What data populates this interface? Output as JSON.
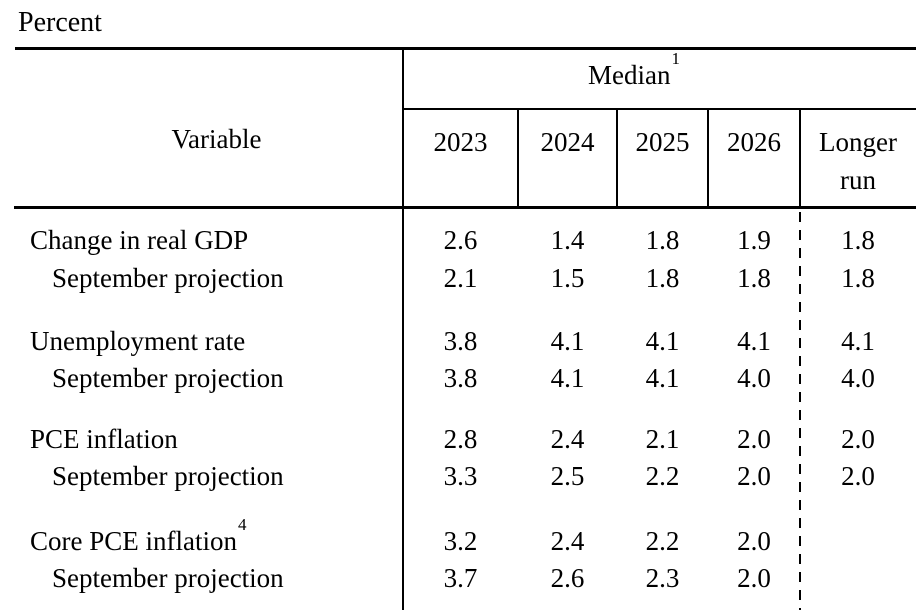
{
  "page": {
    "unit_label": "Percent",
    "text_color": "#000000",
    "background_color": "#ffffff"
  },
  "table": {
    "variable_header": "Variable",
    "median": {
      "label": "Median",
      "sup": "1"
    },
    "years": [
      "2023",
      "2024",
      "2025",
      "2026"
    ],
    "longer_run": {
      "line1": "Longer",
      "line2": "run"
    },
    "rows": [
      {
        "label": "Change in real GDP",
        "sup": "",
        "values": [
          "2.6",
          "1.4",
          "1.8",
          "1.9",
          "1.8"
        ]
      },
      {
        "label": "September projection",
        "sup": "",
        "values": [
          "2.1",
          "1.5",
          "1.8",
          "1.8",
          "1.8"
        ]
      },
      {
        "label": "Unemployment rate",
        "sup": "",
        "values": [
          "3.8",
          "4.1",
          "4.1",
          "4.1",
          "4.1"
        ]
      },
      {
        "label": "September projection",
        "sup": "",
        "values": [
          "3.8",
          "4.1",
          "4.1",
          "4.0",
          "4.0"
        ]
      },
      {
        "label": "PCE inflation",
        "sup": "",
        "values": [
          "2.8",
          "2.4",
          "2.1",
          "2.0",
          "2.0"
        ]
      },
      {
        "label": "September projection",
        "sup": "",
        "values": [
          "3.3",
          "2.5",
          "2.2",
          "2.0",
          "2.0"
        ]
      },
      {
        "label": "Core PCE inflation",
        "sup": "4",
        "values": [
          "3.2",
          "2.4",
          "2.2",
          "2.0",
          ""
        ]
      },
      {
        "label": "September projection",
        "sup": "",
        "values": [
          "3.7",
          "2.6",
          "2.3",
          "2.0",
          ""
        ]
      }
    ]
  },
  "chart_data": {
    "type": "table",
    "title": "Percent",
    "column_group_header": "Median (superscript 1)",
    "columns": [
      "Variable",
      "2023",
      "2024",
      "2025",
      "2026",
      "Longer run"
    ],
    "rows": [
      [
        "Change in real GDP",
        2.6,
        1.4,
        1.8,
        1.9,
        1.8
      ],
      [
        "September projection",
        2.1,
        1.5,
        1.8,
        1.8,
        1.8
      ],
      [
        "Unemployment rate",
        3.8,
        4.1,
        4.1,
        4.1,
        4.1
      ],
      [
        "September projection",
        3.8,
        4.1,
        4.1,
        4.0,
        4.0
      ],
      [
        "PCE inflation",
        2.8,
        2.4,
        2.1,
        2.0,
        2.0
      ],
      [
        "September projection",
        3.3,
        2.5,
        2.2,
        2.0,
        2.0
      ],
      [
        "Core PCE inflation (superscript 4)",
        3.2,
        2.4,
        2.2,
        2.0,
        null
      ],
      [
        "September projection",
        3.7,
        2.6,
        2.3,
        2.0,
        null
      ]
    ],
    "layout_hints": {
      "dashed_separator_before_column": "Longer run",
      "indented_rows": "every September projection row",
      "grid": "horizontal rules at top and below header; vertical rules only in header year row plus main column divider"
    }
  }
}
